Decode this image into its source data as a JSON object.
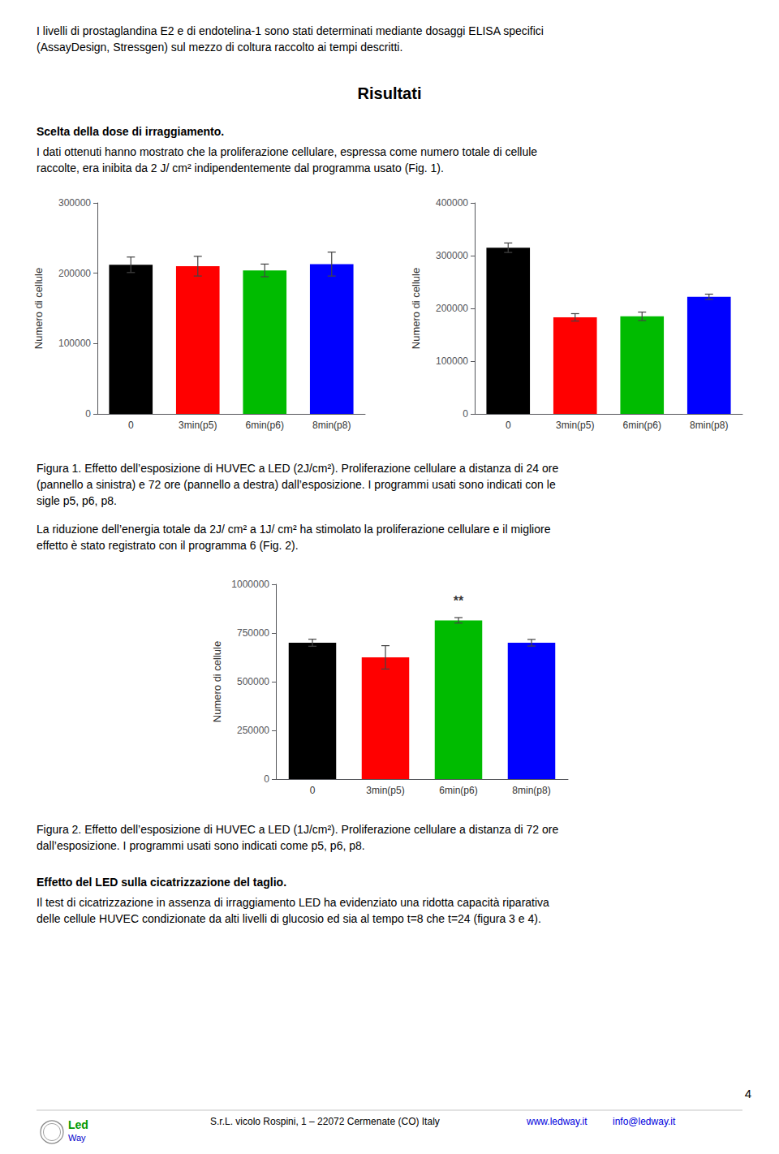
{
  "chart_data": [
    {
      "type": "bar",
      "categories": [
        "0",
        "3min(p5)",
        "6min(p6)",
        "8min(p8)"
      ],
      "values": [
        212000,
        210000,
        204000,
        213000
      ],
      "errors": [
        11000,
        14000,
        9000,
        17000
      ],
      "colors": [
        "#000000",
        "#ff0000",
        "#00bb00",
        "#0000ff"
      ],
      "ylabel": "Numero di cellule",
      "ylim": [
        0,
        300000
      ],
      "yticks": [
        0,
        100000,
        200000,
        300000
      ],
      "grid": false,
      "annotations": [
        "I livelli di prostaglandina E2 e di endotelina-1 sono stati determinati mediante dosaggi ELISA specifici",
        "(AssayDesign, Stressgen) sul mezzo di coltura raccolto ai tempi descritti.",
        "Risultati",
        "Scelta della dose di irraggiamento.",
        "I dati ottenuti hanno mostrato che la proliferazione cellulare, espressa come numero totale di cellule",
        "raccolte, era inibita da 2 J/ cm² indipendentemente dal programma usato (Fig. 1)."
      ]
    },
    {
      "type": "bar",
      "categories": [
        "0",
        "3min(p5)",
        "6min(p6)",
        "8min(p8)"
      ],
      "values": [
        315000,
        183000,
        185000,
        222000
      ],
      "errors": [
        9000,
        7000,
        8000,
        5000
      ],
      "colors": [
        "#000000",
        "#ff0000",
        "#00bb00",
        "#0000ff"
      ],
      "ylabel": "Numero di cellule",
      "ylim": [
        0,
        400000
      ],
      "yticks": [
        0,
        100000,
        200000,
        300000,
        400000
      ],
      "grid": false,
      "annotations": [
        "Figura 1. Effetto dell’esposizione di HUVEC a LED (2J/cm²). Proliferazione cellulare a distanza di 24 ore",
        "(pannello a sinistra) e 72 ore (pannello a destra) dall’esposizione. I programmi usati sono indicati con le",
        "sigle p5, p6, p8.",
        "La riduzione dell’energia totale da 2J/ cm² a 1J/ cm² ha stimolato la proliferazione cellulare e il migliore",
        "effetto è stato registrato con il programma 6 (Fig. 2)."
      ]
    },
    {
      "type": "bar",
      "categories": [
        "0",
        "3min(p5)",
        "6min(p6)",
        "8min(p8)"
      ],
      "values": [
        700000,
        625000,
        815000,
        700000
      ],
      "errors": [
        18000,
        60000,
        14000,
        17000
      ],
      "colors": [
        "#000000",
        "#ff0000",
        "#00bb00",
        "#0000ff"
      ],
      "ylabel": "Numero di cellule",
      "ylim": [
        0,
        1000000
      ],
      "yticks": [
        0,
        250000,
        500000,
        750000,
        1000000
      ],
      "grid": false,
      "annotations": [
        {
          "text": "**",
          "x": "6min(p6)"
        },
        "Figura 2. Effetto dell’esposizione di HUVEC a LED (1J/cm²). Proliferazione cellulare a distanza di 72 ore",
        "dall’esposizione. I programmi usati sono indicati come p5, p6, p8.",
        "Effetto del LED sulla cicatrizzazione del taglio.",
        "Il test di cicatrizzazione in assenza di irraggiamento LED ha evidenziato una ridotta capacità riparativa",
        "delle cellule HUVEC condizionate da alti livelli di glucosio ed sia al tempo t=8 che t=24 (figura 3 e 4).",
        "4",
        "S.r.L. vicolo Rospini, 1 – 22072 Cermenate (CO) Italy",
        "www.ledway.it",
        "info@ledway.it",
        "Led",
        "Way"
      ]
    }
  ]
}
